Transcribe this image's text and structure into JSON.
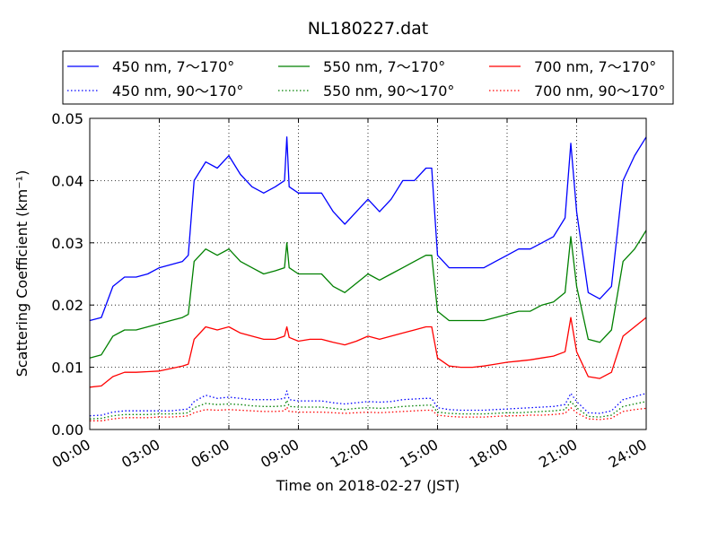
{
  "chart_data": {
    "type": "line",
    "title": "NL180227.dat",
    "xlabel": "Time on 2018-02-27 (JST)",
    "ylabel": "Scattering Coefficient (km⁻¹)",
    "xlim_hours": [
      0,
      24
    ],
    "ylim": [
      0,
      0.05
    ],
    "x_ticks": [
      "00:00",
      "03:00",
      "06:00",
      "09:00",
      "12:00",
      "15:00",
      "18:00",
      "21:00",
      "24:00"
    ],
    "y_ticks": [
      "0.00",
      "0.01",
      "0.02",
      "0.03",
      "0.04",
      "0.05"
    ],
    "grid": true,
    "legend_position": "top",
    "x_hours": [
      0,
      0.5,
      1,
      1.5,
      2,
      2.5,
      3,
      3.5,
      4,
      4.25,
      4.5,
      5,
      5.5,
      6,
      6.5,
      7,
      7.5,
      8,
      8.4,
      8.5,
      8.6,
      9,
      9.5,
      10,
      10.5,
      11,
      11.5,
      12,
      12.5,
      13,
      13.5,
      14,
      14.5,
      14.75,
      15,
      15.5,
      16,
      16.5,
      17,
      17.5,
      18,
      18.5,
      19,
      19.5,
      20,
      20.5,
      20.75,
      21,
      21.5,
      22,
      22.5,
      23,
      23.5,
      24
    ],
    "series": [
      {
        "name": "450 nm, 7～170°",
        "color": "#0000ff",
        "style": "solid",
        "values": [
          0.0175,
          0.018,
          0.023,
          0.0245,
          0.0245,
          0.025,
          0.026,
          0.0265,
          0.027,
          0.028,
          0.04,
          0.043,
          0.042,
          0.044,
          0.041,
          0.039,
          0.038,
          0.039,
          0.04,
          0.047,
          0.039,
          0.038,
          0.038,
          0.038,
          0.035,
          0.033,
          0.035,
          0.037,
          0.035,
          0.037,
          0.04,
          0.04,
          0.042,
          0.042,
          0.028,
          0.026,
          0.026,
          0.026,
          0.026,
          0.027,
          0.028,
          0.029,
          0.029,
          0.03,
          0.031,
          0.034,
          0.046,
          0.035,
          0.022,
          0.021,
          0.023,
          0.04,
          0.044,
          0.047
        ]
      },
      {
        "name": "550 nm, 7～170°",
        "color": "#008000",
        "style": "solid",
        "values": [
          0.0115,
          0.012,
          0.015,
          0.016,
          0.016,
          0.0165,
          0.017,
          0.0175,
          0.018,
          0.0185,
          0.027,
          0.029,
          0.028,
          0.029,
          0.027,
          0.026,
          0.025,
          0.0255,
          0.026,
          0.03,
          0.026,
          0.025,
          0.025,
          0.025,
          0.023,
          0.022,
          0.0235,
          0.025,
          0.024,
          0.025,
          0.026,
          0.027,
          0.028,
          0.028,
          0.019,
          0.0175,
          0.0175,
          0.0175,
          0.0175,
          0.018,
          0.0185,
          0.019,
          0.019,
          0.02,
          0.0205,
          0.022,
          0.031,
          0.023,
          0.0145,
          0.014,
          0.016,
          0.027,
          0.029,
          0.032
        ]
      },
      {
        "name": "700 nm, 7～170°",
        "color": "#ff0000",
        "style": "solid",
        "values": [
          0.0068,
          0.007,
          0.0085,
          0.0092,
          0.0092,
          0.0093,
          0.0094,
          0.0098,
          0.0102,
          0.0105,
          0.0145,
          0.0165,
          0.016,
          0.0165,
          0.0155,
          0.015,
          0.0145,
          0.0145,
          0.015,
          0.0165,
          0.0148,
          0.0142,
          0.0145,
          0.0145,
          0.014,
          0.0136,
          0.0142,
          0.015,
          0.0145,
          0.015,
          0.0155,
          0.016,
          0.0165,
          0.0165,
          0.0115,
          0.0102,
          0.01,
          0.01,
          0.0102,
          0.0105,
          0.0108,
          0.011,
          0.0112,
          0.0115,
          0.0118,
          0.0125,
          0.018,
          0.0125,
          0.0085,
          0.0082,
          0.0092,
          0.015,
          0.0165,
          0.018
        ]
      },
      {
        "name": "450 nm, 90～170°",
        "color": "#0000ff",
        "style": "dotted",
        "values": [
          0.0022,
          0.0023,
          0.0028,
          0.003,
          0.003,
          0.003,
          0.003,
          0.003,
          0.0032,
          0.0033,
          0.0045,
          0.0055,
          0.005,
          0.0052,
          0.005,
          0.0048,
          0.0048,
          0.0048,
          0.005,
          0.0062,
          0.0048,
          0.0046,
          0.0046,
          0.0046,
          0.0043,
          0.0041,
          0.0043,
          0.0045,
          0.0044,
          0.0045,
          0.0048,
          0.0049,
          0.005,
          0.005,
          0.0035,
          0.0032,
          0.0031,
          0.0031,
          0.0031,
          0.0032,
          0.0033,
          0.0034,
          0.0035,
          0.0036,
          0.0037,
          0.004,
          0.0058,
          0.0045,
          0.0027,
          0.0026,
          0.003,
          0.0048,
          0.0053,
          0.0058
        ]
      },
      {
        "name": "550 nm, 90～170°",
        "color": "#008000",
        "style": "dotted",
        "values": [
          0.0017,
          0.0018,
          0.0022,
          0.0024,
          0.0024,
          0.0024,
          0.0025,
          0.0025,
          0.0026,
          0.0027,
          0.0035,
          0.0042,
          0.004,
          0.0041,
          0.004,
          0.0038,
          0.0037,
          0.0037,
          0.0038,
          0.0047,
          0.0037,
          0.0036,
          0.0036,
          0.0036,
          0.0034,
          0.0032,
          0.0034,
          0.0035,
          0.0034,
          0.0035,
          0.0037,
          0.0038,
          0.0039,
          0.0039,
          0.0028,
          0.0026,
          0.0025,
          0.0025,
          0.0025,
          0.0026,
          0.0027,
          0.0027,
          0.0028,
          0.0029,
          0.003,
          0.0032,
          0.0045,
          0.0035,
          0.0021,
          0.002,
          0.0023,
          0.0037,
          0.0041,
          0.0045
        ]
      },
      {
        "name": "700 nm, 90～170°",
        "color": "#ff0000",
        "style": "dotted",
        "values": [
          0.0014,
          0.0014,
          0.0017,
          0.0019,
          0.0019,
          0.0019,
          0.002,
          0.002,
          0.0021,
          0.0022,
          0.0027,
          0.0032,
          0.0031,
          0.0032,
          0.0031,
          0.003,
          0.0029,
          0.0029,
          0.003,
          0.0036,
          0.0029,
          0.0028,
          0.0028,
          0.0028,
          0.0027,
          0.0026,
          0.0027,
          0.0028,
          0.0027,
          0.0028,
          0.0029,
          0.003,
          0.0031,
          0.0031,
          0.0023,
          0.0021,
          0.002,
          0.002,
          0.002,
          0.0021,
          0.0022,
          0.0022,
          0.0023,
          0.0023,
          0.0024,
          0.0026,
          0.0035,
          0.0027,
          0.0017,
          0.0016,
          0.0018,
          0.0029,
          0.0032,
          0.0034
        ]
      }
    ]
  }
}
